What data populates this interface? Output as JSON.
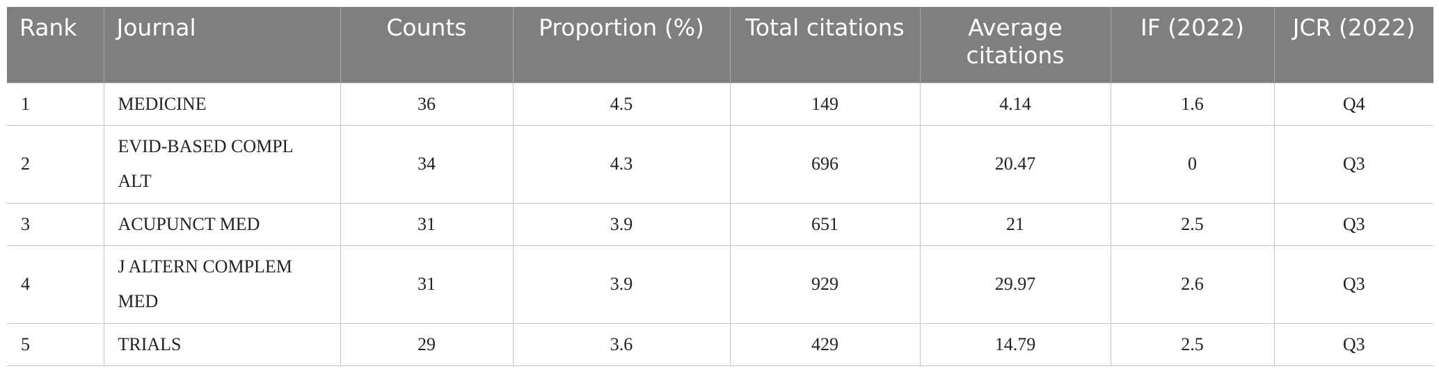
{
  "table": {
    "header": [
      "Rank",
      "Journal",
      "Counts",
      "Proportion (%)",
      "Total citations",
      "Average citations",
      "IF (2022)",
      "JCR (2022)"
    ],
    "rows": [
      [
        1,
        "MEDICINE",
        36,
        4.5,
        149,
        4.14,
        1.6,
        "Q4"
      ],
      [
        2,
        "EVID-BASED COMPL ALT",
        34,
        4.3,
        696,
        20.47,
        0,
        "Q3"
      ],
      [
        3,
        "ACUPUNCT MED",
        31,
        3.9,
        651,
        21,
        2.5,
        "Q3"
      ],
      [
        4,
        "J ALTERN COMPLEM MED",
        31,
        3.9,
        929,
        29.97,
        2.6,
        "Q3"
      ],
      [
        5,
        "TRIALS",
        29,
        3.6,
        429,
        14.79,
        2.5,
        "Q3"
      ]
    ]
  }
}
